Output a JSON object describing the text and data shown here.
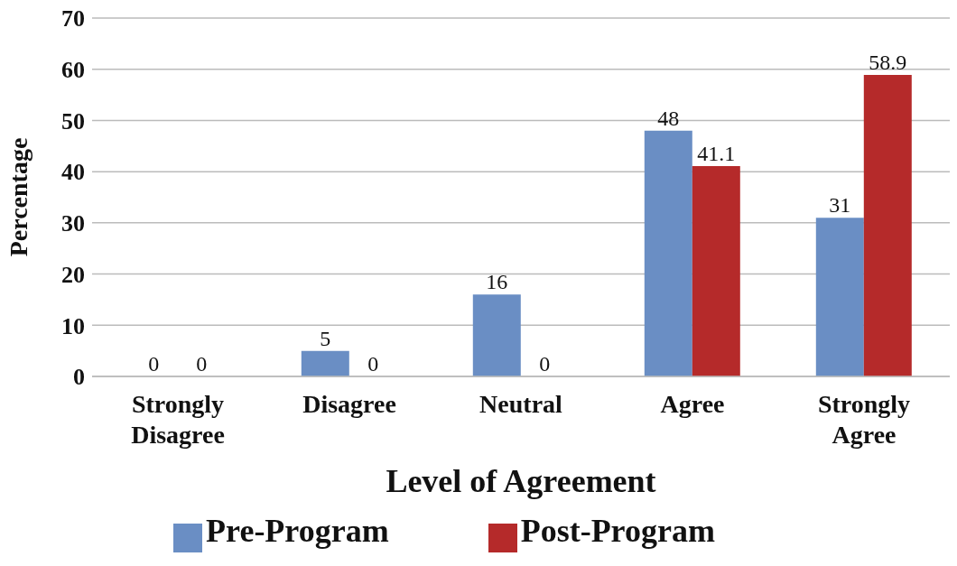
{
  "chart_data": {
    "type": "bar",
    "xlabel": "Level of Agreement",
    "ylabel": "Percentage",
    "categories": [
      "Strongly Disagree",
      "Disagree",
      "Neutral",
      "Agree",
      "Strongly Agree"
    ],
    "series": [
      {
        "name": "Pre-Program",
        "color": "#6a8ec4",
        "values": [
          0,
          5,
          16,
          48,
          31
        ]
      },
      {
        "name": "Post-Program",
        "color": "#b52a2a",
        "values": [
          0,
          0,
          0,
          41.1,
          58.9
        ]
      }
    ],
    "ylim": [
      0,
      70
    ],
    "yticks": [
      0,
      10,
      20,
      30,
      40,
      50,
      60,
      70
    ],
    "grid": "y",
    "legend": "bottom",
    "data_labels": true
  }
}
